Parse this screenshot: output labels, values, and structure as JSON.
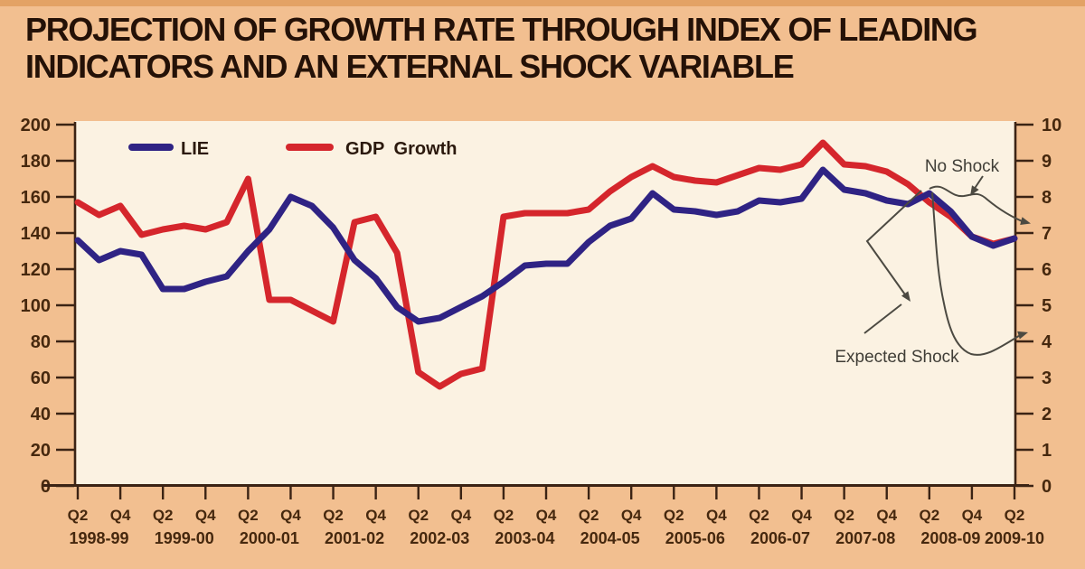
{
  "title": {
    "line1": "PROJECTION OF GROWTH RATE THROUGH INDEX OF LEADING",
    "line2": "INDICATORS AND AN EXTERNAL SHOCK VARIABLE"
  },
  "colors": {
    "page_background": "#f2bf90",
    "top_band": "#e3a265",
    "plot_background": "#fbf2e2",
    "axis": "#3b2314",
    "tick_label": "#46280e",
    "title_text": "#241107",
    "legend_text": "#2b190d",
    "callout": "#4c4a42",
    "lie_line": "#2f2384",
    "gdp_line": "#d5262c"
  },
  "chart_data": {
    "type": "line",
    "title": "Projection of growth rate through index of leading indicators and an external shock variable",
    "x_axis": {
      "tick_labels": [
        "Q2",
        "Q4",
        "Q2",
        "Q4",
        "Q2",
        "Q4",
        "Q2",
        "Q4",
        "Q2",
        "Q4",
        "Q2",
        "Q4",
        "Q2",
        "Q4",
        "Q2",
        "Q4",
        "Q2",
        "Q4",
        "Q2",
        "Q4",
        "Q2",
        "Q4",
        "Q2"
      ],
      "year_labels": [
        "1998-99",
        "1999-00",
        "2000-01",
        "2001-02",
        "2002-03",
        "2003-04",
        "2004-05",
        "2005-06",
        "2006-07",
        "2007-08",
        "2008-09",
        "2009-10"
      ],
      "quarters_per_point": 1
    },
    "left_axis": {
      "min": 0,
      "max": 200,
      "step": 20,
      "ticks": [
        0,
        20,
        40,
        60,
        80,
        100,
        120,
        140,
        160,
        180,
        200
      ]
    },
    "right_axis": {
      "min": 0,
      "max": 10,
      "step": 1,
      "ticks": [
        0,
        1,
        2,
        3,
        4,
        5,
        6,
        7,
        8,
        9,
        10
      ]
    },
    "grid": false,
    "legend_position": "top-left-inside",
    "series": [
      {
        "name": "GDP Growth",
        "color": "#d5262c",
        "axis": "left",
        "values": [
          157,
          150,
          155,
          139,
          142,
          144,
          142,
          146,
          170,
          103,
          103,
          97,
          91,
          146,
          149,
          129,
          63,
          55,
          62,
          65,
          149,
          151,
          151,
          151,
          153,
          163,
          171,
          177,
          171,
          169,
          168,
          172,
          176,
          175,
          178,
          190,
          178,
          177,
          174,
          167,
          157,
          149,
          138,
          134,
          137
        ]
      },
      {
        "name": "LIE",
        "color": "#2f2384",
        "axis": "left",
        "values": [
          136,
          125,
          130,
          128,
          109,
          109,
          113,
          116,
          130,
          142,
          160,
          155,
          143,
          125,
          115,
          99,
          91,
          93,
          99,
          105,
          113,
          122,
          123,
          123,
          135,
          144,
          148,
          162,
          153,
          152,
          150,
          152,
          158,
          157,
          159,
          175,
          164,
          162,
          158,
          156,
          162,
          152,
          138,
          133,
          137
        ]
      }
    ],
    "annotations": [
      {
        "label": "No Shock",
        "type": "projection",
        "end_value_right_axis": 7.3
      },
      {
        "label": "Expected Shock",
        "type": "projection",
        "end_value_right_axis": 4.2
      }
    ]
  }
}
